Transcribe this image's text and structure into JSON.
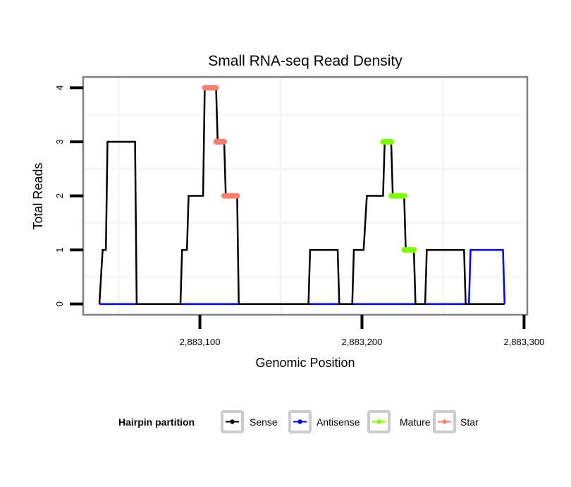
{
  "chart_data": {
    "type": "line",
    "title": "Small RNA-seq Read Density",
    "xlabel": "Genomic Position",
    "ylabel": "Total Reads",
    "xlim": [
      2883028,
      2883302
    ],
    "ylim": [
      -0.2,
      4.2
    ],
    "x_ticks": [
      2883100,
      2883200,
      2883300
    ],
    "x_tick_labels": [
      "2,883,100",
      "2,883,200",
      "2,883,300"
    ],
    "y_ticks": [
      0,
      1,
      2,
      3,
      4
    ],
    "y_tick_labels": [
      "0",
      "1",
      "2",
      "3",
      "4"
    ],
    "x_minor_grid": [
      2883050,
      2883150,
      2883250
    ],
    "y_minor_grid": [
      0.5,
      1.5,
      2.5,
      3.5
    ],
    "grid": true,
    "legend": {
      "title": "Hairpin partition",
      "placement": "bottom",
      "entries": [
        {
          "label": "Sense",
          "color": "#000000"
        },
        {
          "label": "Antisense",
          "color": "#0000ff"
        },
        {
          "label": "Mature",
          "color": "#7fff00"
        },
        {
          "label": "Star",
          "color": "#fa8072"
        }
      ]
    },
    "series": [
      {
        "name": "Antisense",
        "color": "#0000ff",
        "kind": "line",
        "x": [
          2883038,
          2883266,
          2883267,
          2883287,
          2883288
        ],
        "y": [
          0,
          0,
          1,
          1,
          0
        ]
      },
      {
        "name": "Sense",
        "color": "#000000",
        "kind": "line",
        "x": [
          2883038,
          2883040,
          2883042,
          2883043,
          2883060,
          2883061,
          2883088,
          2883089,
          2883092,
          2883093,
          2883102,
          2883103,
          2883110,
          2883111,
          2883115,
          2883116,
          2883123,
          2883124,
          2883167,
          2883168,
          2883185,
          2883186,
          2883194,
          2883195,
          2883201,
          2883203,
          2883213,
          2883214,
          2883218,
          2883219,
          2883226,
          2883227,
          2883232,
          2883233,
          2883239,
          2883240,
          2883263,
          2883264,
          2883288
        ],
        "y": [
          0,
          1,
          1,
          3,
          3,
          0,
          0,
          1,
          1,
          2,
          2,
          4,
          4,
          3,
          3,
          2,
          2,
          0,
          0,
          1,
          1,
          0,
          0,
          1,
          1,
          2,
          2,
          3,
          3,
          2,
          2,
          1,
          1,
          0,
          0,
          1,
          1,
          0,
          0
        ]
      },
      {
        "name": "Star",
        "color": "#fa8072",
        "kind": "segments",
        "segments": [
          {
            "x0": 2883103,
            "x1": 2883110,
            "y": 4
          },
          {
            "x0": 2883110,
            "x1": 2883115,
            "y": 3
          },
          {
            "x0": 2883115,
            "x1": 2883123,
            "y": 2
          }
        ]
      },
      {
        "name": "Mature",
        "color": "#7fff00",
        "kind": "segments",
        "segments": [
          {
            "x0": 2883213,
            "x1": 2883218,
            "y": 3
          },
          {
            "x0": 2883218,
            "x1": 2883226,
            "y": 2
          },
          {
            "x0": 2883226,
            "x1": 2883232,
            "y": 1
          }
        ]
      }
    ]
  }
}
